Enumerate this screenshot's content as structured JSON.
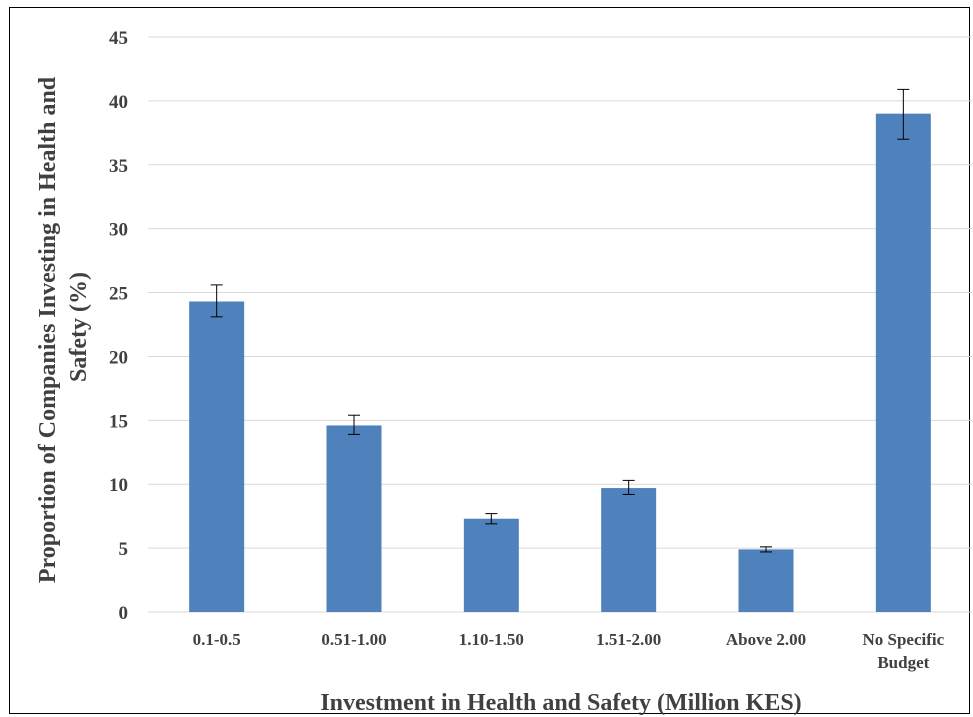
{
  "chart_data": {
    "type": "bar",
    "title": "",
    "xlabel": "Investment in Health and Safety (Million KES)",
    "ylabel_lines": [
      "Proportion of Companies Investing in Health and",
      "Safety (%)"
    ],
    "categories": [
      [
        "0.1-0.5"
      ],
      [
        "0.51-1.00"
      ],
      [
        "1.10-1.50"
      ],
      [
        "1.51-2.00"
      ],
      [
        "Above 2.00"
      ],
      [
        "No Specific",
        "Budget"
      ]
    ],
    "values": [
      24.3,
      14.6,
      7.3,
      9.7,
      4.9,
      39.0
    ],
    "error_low": [
      23.1,
      13.9,
      6.9,
      9.2,
      4.7,
      37.0
    ],
    "error_high": [
      25.6,
      15.4,
      7.7,
      10.3,
      5.1,
      40.9
    ],
    "ylim": [
      0,
      45
    ],
    "yticks": [
      0,
      5,
      10,
      15,
      20,
      25,
      30,
      35,
      40,
      45
    ],
    "grid": true,
    "bar_color": "#4F81BD",
    "grid_color": "#D9D9D9"
  }
}
